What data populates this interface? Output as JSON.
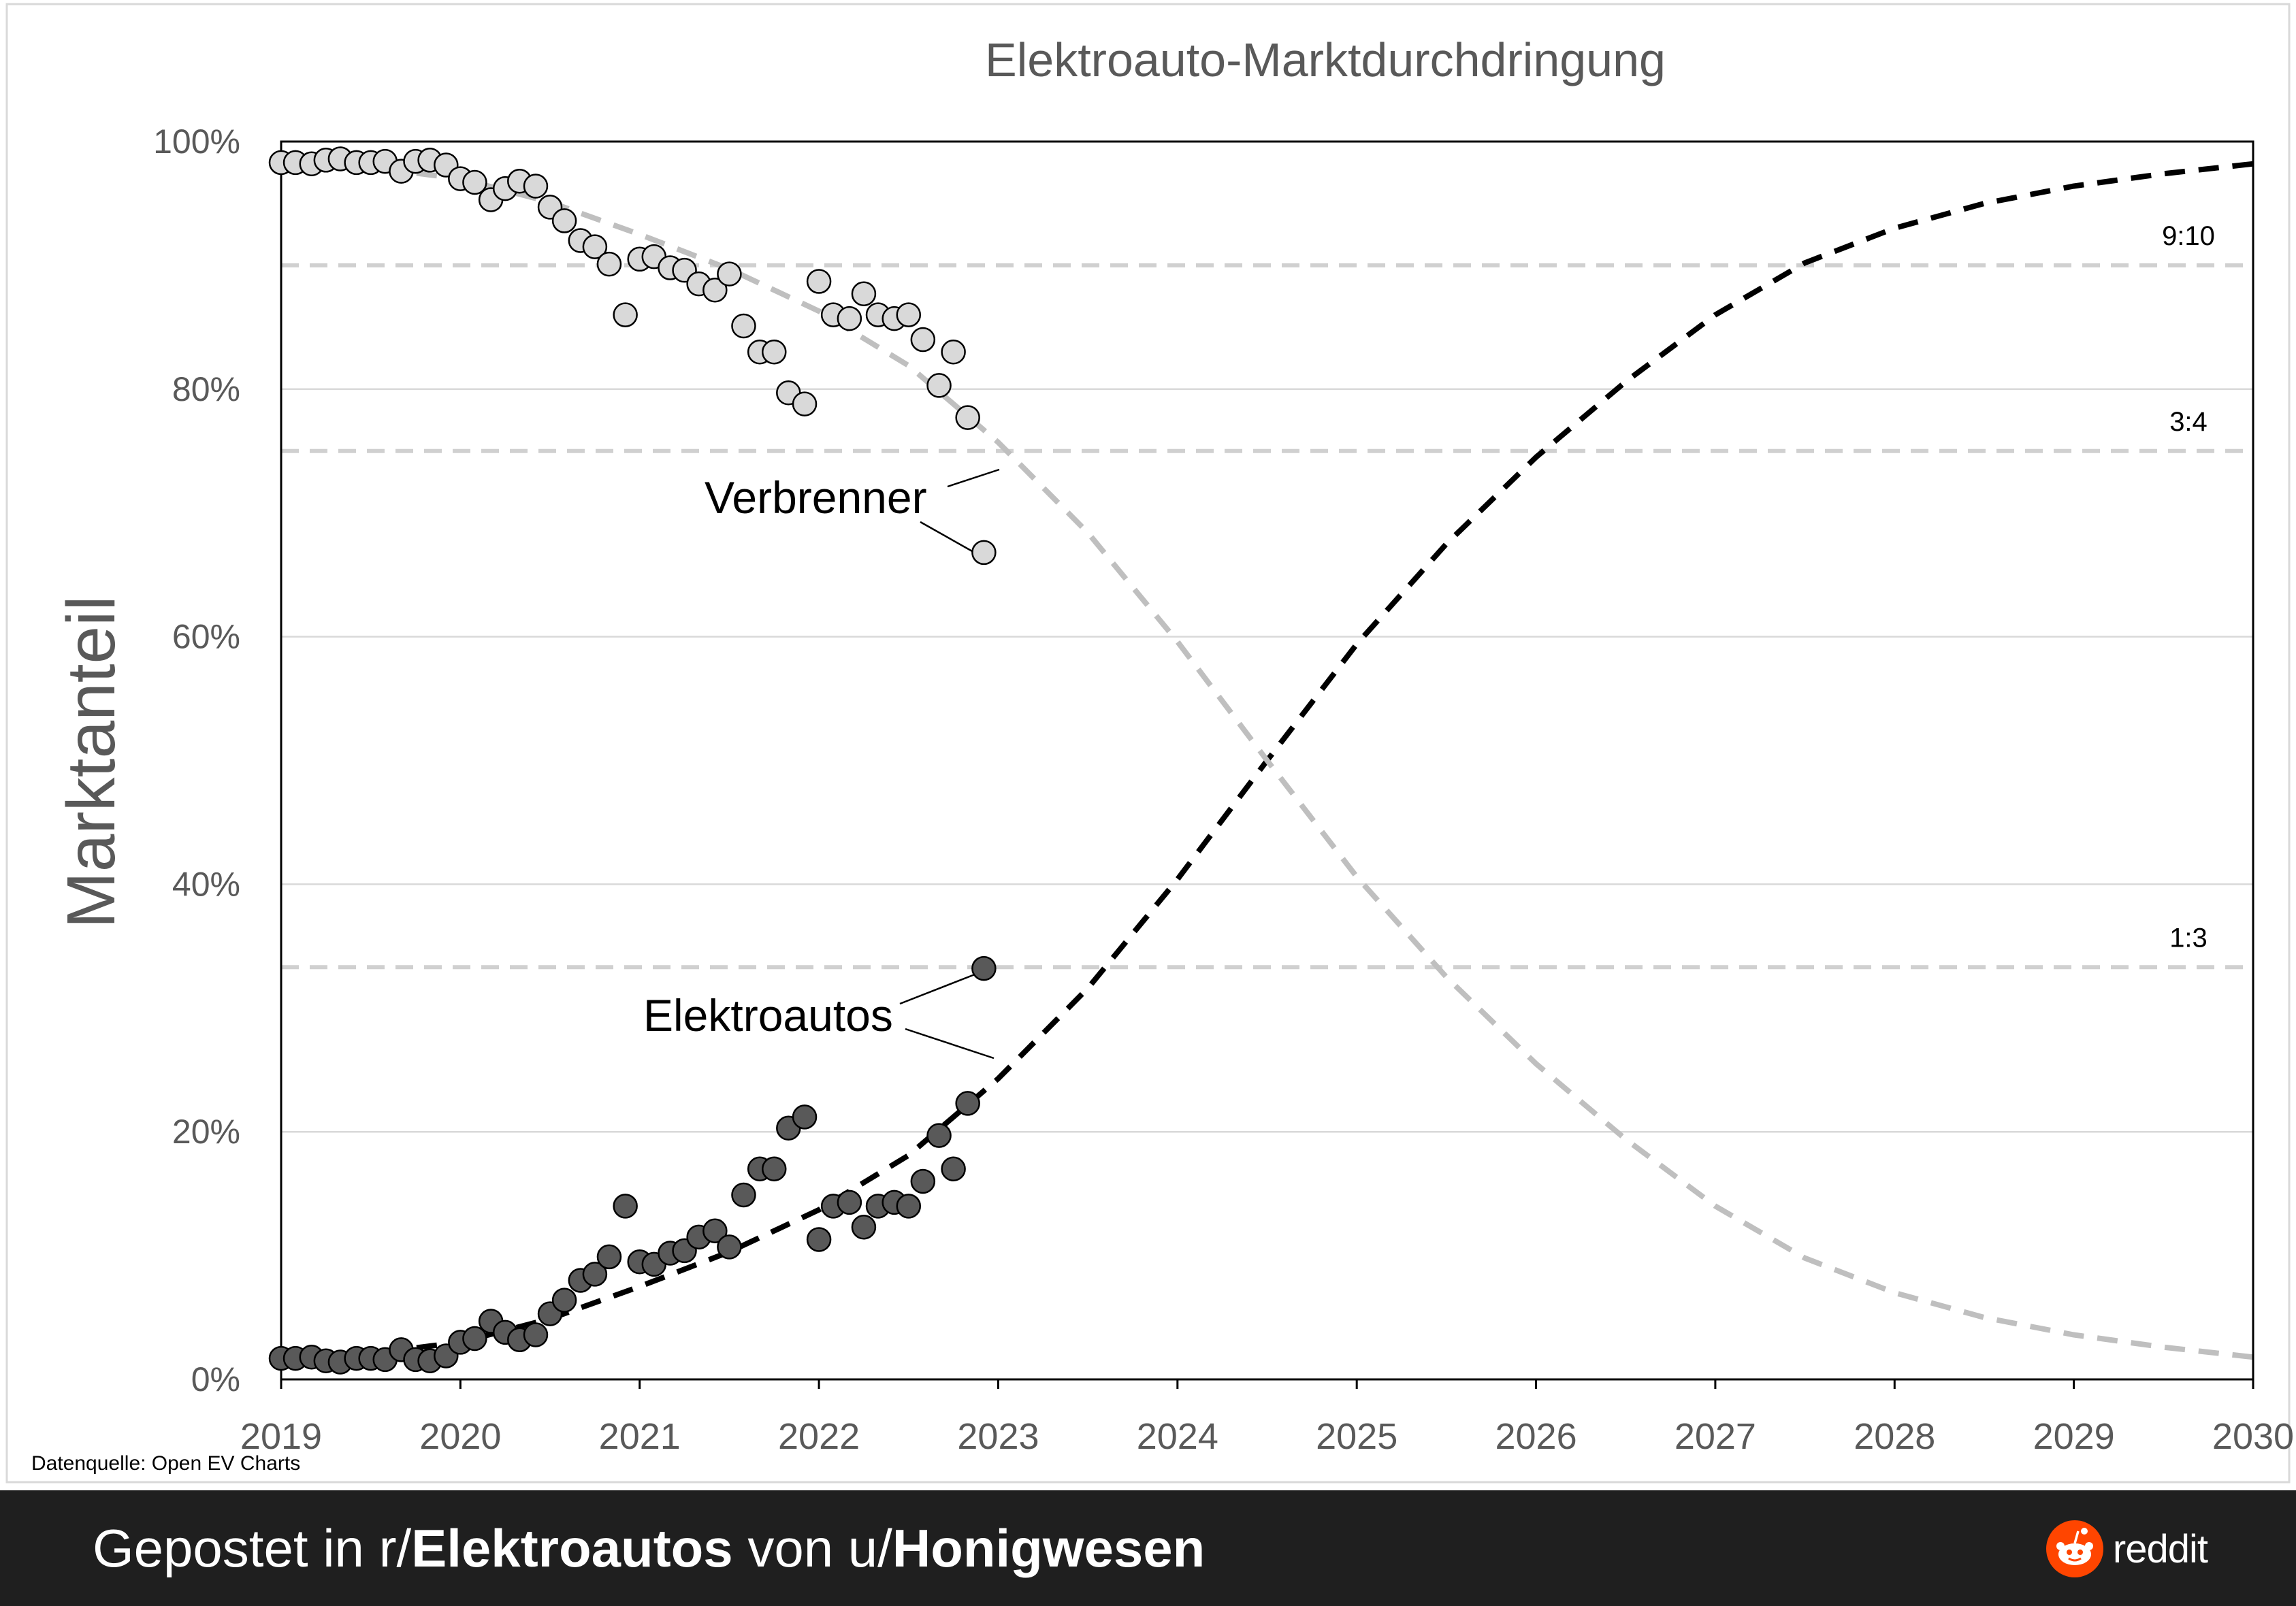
{
  "chart_data": {
    "type": "scatter",
    "title": "Elektroauto-Marktdurchdringung",
    "xlabel": "",
    "ylabel": "Marktanteil",
    "xlim": [
      2019,
      2030
    ],
    "ylim": [
      0,
      100
    ],
    "x_ticks": [
      "2019",
      "2020",
      "2021",
      "2022",
      "2023",
      "2024",
      "2025",
      "2026",
      "2027",
      "2028",
      "2029",
      "2030"
    ],
    "y_ticks": [
      "0%",
      "20%",
      "40%",
      "60%",
      "80%",
      "100%"
    ],
    "grid": "horizontal",
    "reference_lines": [
      {
        "y": 90,
        "label": "9:10"
      },
      {
        "y": 75,
        "label": "3:4"
      },
      {
        "y": 33.3,
        "label": "1:3"
      }
    ],
    "annotations": {
      "ice": "Verbrenner",
      "ev": "Elektroautos"
    },
    "source": "Datenquelle: Open EV Charts",
    "series": [
      {
        "name": "Elektroautos",
        "color": "#595959",
        "x": [
          2019.0,
          2019.08,
          2019.17,
          2019.25,
          2019.33,
          2019.42,
          2019.5,
          2019.58,
          2019.67,
          2019.75,
          2019.83,
          2019.92,
          2020.0,
          2020.08,
          2020.17,
          2020.25,
          2020.33,
          2020.42,
          2020.5,
          2020.58,
          2020.67,
          2020.75,
          2020.83,
          2020.92,
          2021.0,
          2021.08,
          2021.17,
          2021.25,
          2021.33,
          2021.42,
          2021.5,
          2021.58,
          2021.67,
          2021.75,
          2021.83,
          2021.92,
          2022.0,
          2022.08,
          2022.17,
          2022.25,
          2022.33,
          2022.42,
          2022.5,
          2022.58,
          2022.67,
          2022.75,
          2022.83,
          2022.92
        ],
        "values": [
          1.7,
          1.7,
          1.8,
          1.5,
          1.4,
          1.7,
          1.7,
          1.6,
          2.4,
          1.6,
          1.5,
          1.9,
          3.0,
          3.3,
          4.7,
          3.8,
          3.2,
          3.6,
          5.3,
          6.4,
          8.0,
          8.5,
          9.9,
          14.0,
          9.5,
          9.3,
          10.2,
          10.4,
          11.5,
          12.0,
          10.7,
          14.9,
          17.0,
          17.0,
          20.3,
          21.2,
          11.3,
          14.0,
          14.3,
          12.3,
          14.0,
          14.3,
          14.0,
          16.0,
          19.7,
          17.0,
          22.3,
          33.2
        ]
      },
      {
        "name": "Verbrenner",
        "color": "#d9d9d9",
        "x": [
          2019.0,
          2019.08,
          2019.17,
          2019.25,
          2019.33,
          2019.42,
          2019.5,
          2019.58,
          2019.67,
          2019.75,
          2019.83,
          2019.92,
          2020.0,
          2020.08,
          2020.17,
          2020.25,
          2020.33,
          2020.42,
          2020.5,
          2020.58,
          2020.67,
          2020.75,
          2020.83,
          2020.92,
          2021.0,
          2021.08,
          2021.17,
          2021.25,
          2021.33,
          2021.42,
          2021.5,
          2021.58,
          2021.67,
          2021.75,
          2021.83,
          2021.92,
          2022.0,
          2022.08,
          2022.17,
          2022.25,
          2022.33,
          2022.42,
          2022.5,
          2022.58,
          2022.67,
          2022.75,
          2022.83,
          2022.92
        ],
        "values": [
          98.3,
          98.3,
          98.2,
          98.5,
          98.6,
          98.3,
          98.3,
          98.4,
          97.6,
          98.4,
          98.5,
          98.1,
          97.0,
          96.7,
          95.3,
          96.2,
          96.8,
          96.4,
          94.7,
          93.6,
          92.0,
          91.5,
          90.1,
          86.0,
          90.5,
          90.7,
          89.8,
          89.6,
          88.5,
          88.0,
          89.3,
          85.1,
          83.0,
          83.0,
          79.7,
          78.8,
          88.7,
          86.0,
          85.7,
          87.7,
          86.0,
          85.7,
          86.0,
          84.0,
          80.3,
          83.0,
          77.7,
          66.8
        ]
      },
      {
        "name": "Elektroautos Trend",
        "color": "#000000",
        "style": "dashed",
        "x": [
          2019.0,
          2019.5,
          2020.0,
          2020.5,
          2021.0,
          2021.5,
          2022.0,
          2022.5,
          2023.0,
          2023.5,
          2024.0,
          2024.5,
          2025.0,
          2025.5,
          2026.0,
          2026.5,
          2027.0,
          2027.5,
          2028.0,
          2028.5,
          2029.0,
          2029.5,
          2030.0
        ],
        "values": [
          1.5,
          2.1,
          3.0,
          4.9,
          7.5,
          10.3,
          13.7,
          18.1,
          24.3,
          31.6,
          40.4,
          50.0,
          59.4,
          67.5,
          74.5,
          80.6,
          86.0,
          90.2,
          93.0,
          95.0,
          96.4,
          97.4,
          98.2
        ]
      },
      {
        "name": "Verbrenner Trend",
        "color": "#bfbfbf",
        "style": "dashed",
        "x": [
          2019.0,
          2019.5,
          2020.0,
          2020.5,
          2021.0,
          2021.5,
          2022.0,
          2022.5,
          2023.0,
          2023.5,
          2024.0,
          2024.5,
          2025.0,
          2025.5,
          2026.0,
          2026.5,
          2027.0,
          2027.5,
          2028.0,
          2028.5,
          2029.0,
          2029.5,
          2030.0
        ],
        "values": [
          98.5,
          97.9,
          97.0,
          95.1,
          92.5,
          89.7,
          86.3,
          81.9,
          75.7,
          68.4,
          59.6,
          50.0,
          40.6,
          32.5,
          25.5,
          19.4,
          14.0,
          9.8,
          7.0,
          5.0,
          3.6,
          2.6,
          1.8
        ]
      }
    ]
  },
  "footer": {
    "prefix": "Gepostet in r/",
    "subreddit": "Elektroautos",
    "middle": " von u/",
    "user": "Honigwesen",
    "brand": "reddit",
    "brand_color": "#ff4500"
  }
}
